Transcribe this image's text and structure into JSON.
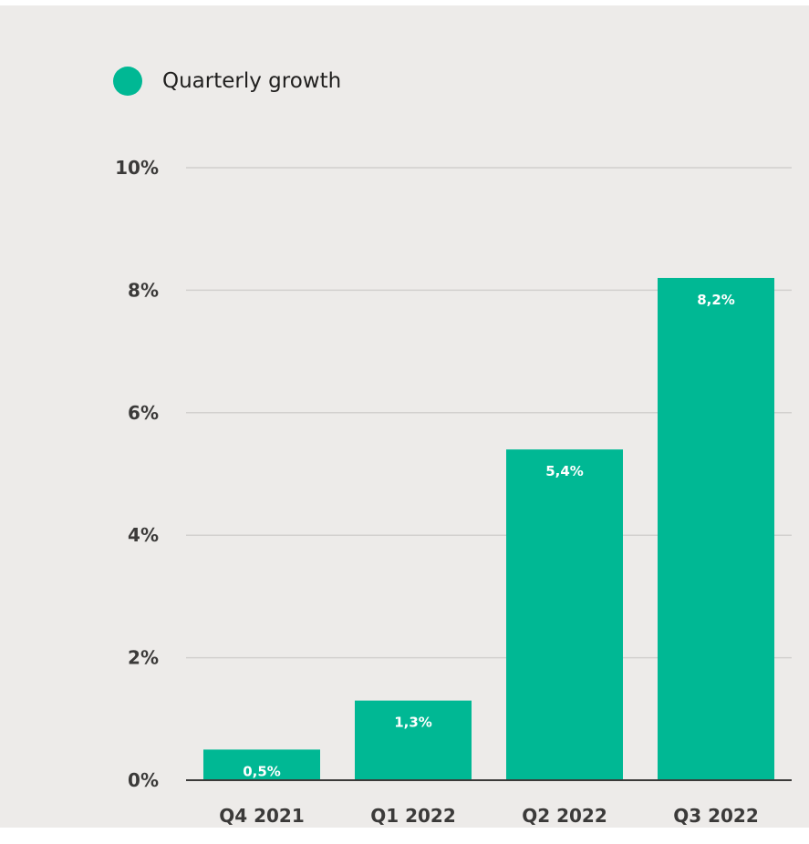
{
  "chart_data": {
    "type": "bar",
    "title": "",
    "xlabel": "",
    "ylabel": "",
    "categories": [
      "Q4 2021",
      "Q1 2022",
      "Q2 2022",
      "Q3 2022"
    ],
    "series": [
      {
        "name": "Quarterly growth",
        "values": [
          0.5,
          1.3,
          5.4,
          8.2
        ],
        "value_labels": [
          "0,5%",
          "1,3%",
          "5,4%",
          "8,2%"
        ]
      }
    ],
    "ylim": [
      0,
      10
    ],
    "yticks": [
      0,
      2,
      4,
      6,
      8,
      10
    ],
    "ytick_labels": [
      "0%",
      "2%",
      "4%",
      "6%",
      "8%",
      "10%"
    ],
    "grid": true,
    "legend": "top-left",
    "colors": {
      "bar": "#00b894",
      "gridline": "#d2d0ce",
      "axis": "#3b3a39",
      "background": "#edebe9"
    }
  }
}
